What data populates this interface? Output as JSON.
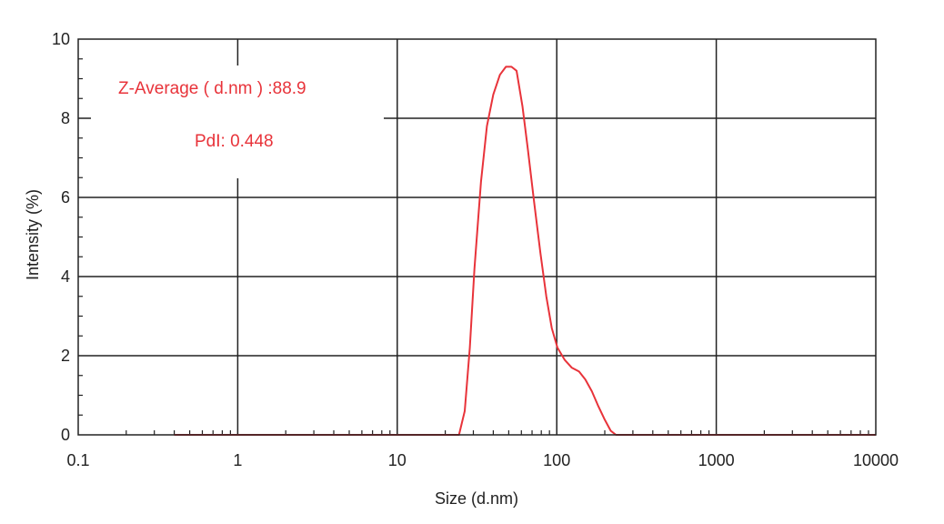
{
  "chart_data": {
    "type": "line",
    "xlabel": "Size (d.nm)",
    "ylabel": "Intensity (%)",
    "x_scale": "log",
    "xlim": [
      0.1,
      10000
    ],
    "ylim": [
      0,
      10
    ],
    "x_ticks": [
      0.1,
      1,
      10,
      100,
      1000,
      10000
    ],
    "x_tick_labels": [
      "0.1",
      "1",
      "10",
      "100",
      "1000",
      "10000"
    ],
    "y_ticks": [
      0,
      2,
      4,
      6,
      8,
      10
    ],
    "y_tick_labels": [
      "0",
      "2",
      "4",
      "6",
      "8",
      "10"
    ],
    "grid": true,
    "line_color": "#e8333a",
    "annotations": [
      "Z-Average ( d.nm ) :88.9",
      "PdI: 0.448"
    ],
    "series": [
      {
        "x": [
          0.4,
          24.4,
          26.5,
          28.5,
          30.5,
          33.5,
          36.5,
          40,
          44,
          48,
          52,
          56,
          61,
          66,
          72,
          79,
          86,
          93,
          101,
          112,
          124,
          138,
          151,
          166,
          181,
          199,
          218,
          235,
          10000
        ],
        "y": [
          0,
          0,
          0.6,
          2.2,
          4.2,
          6.4,
          7.8,
          8.6,
          9.1,
          9.3,
          9.3,
          9.2,
          8.3,
          7.2,
          5.9,
          4.6,
          3.5,
          2.7,
          2.2,
          1.9,
          1.7,
          1.6,
          1.4,
          1.1,
          0.75,
          0.4,
          0.1,
          0,
          0
        ]
      }
    ]
  }
}
